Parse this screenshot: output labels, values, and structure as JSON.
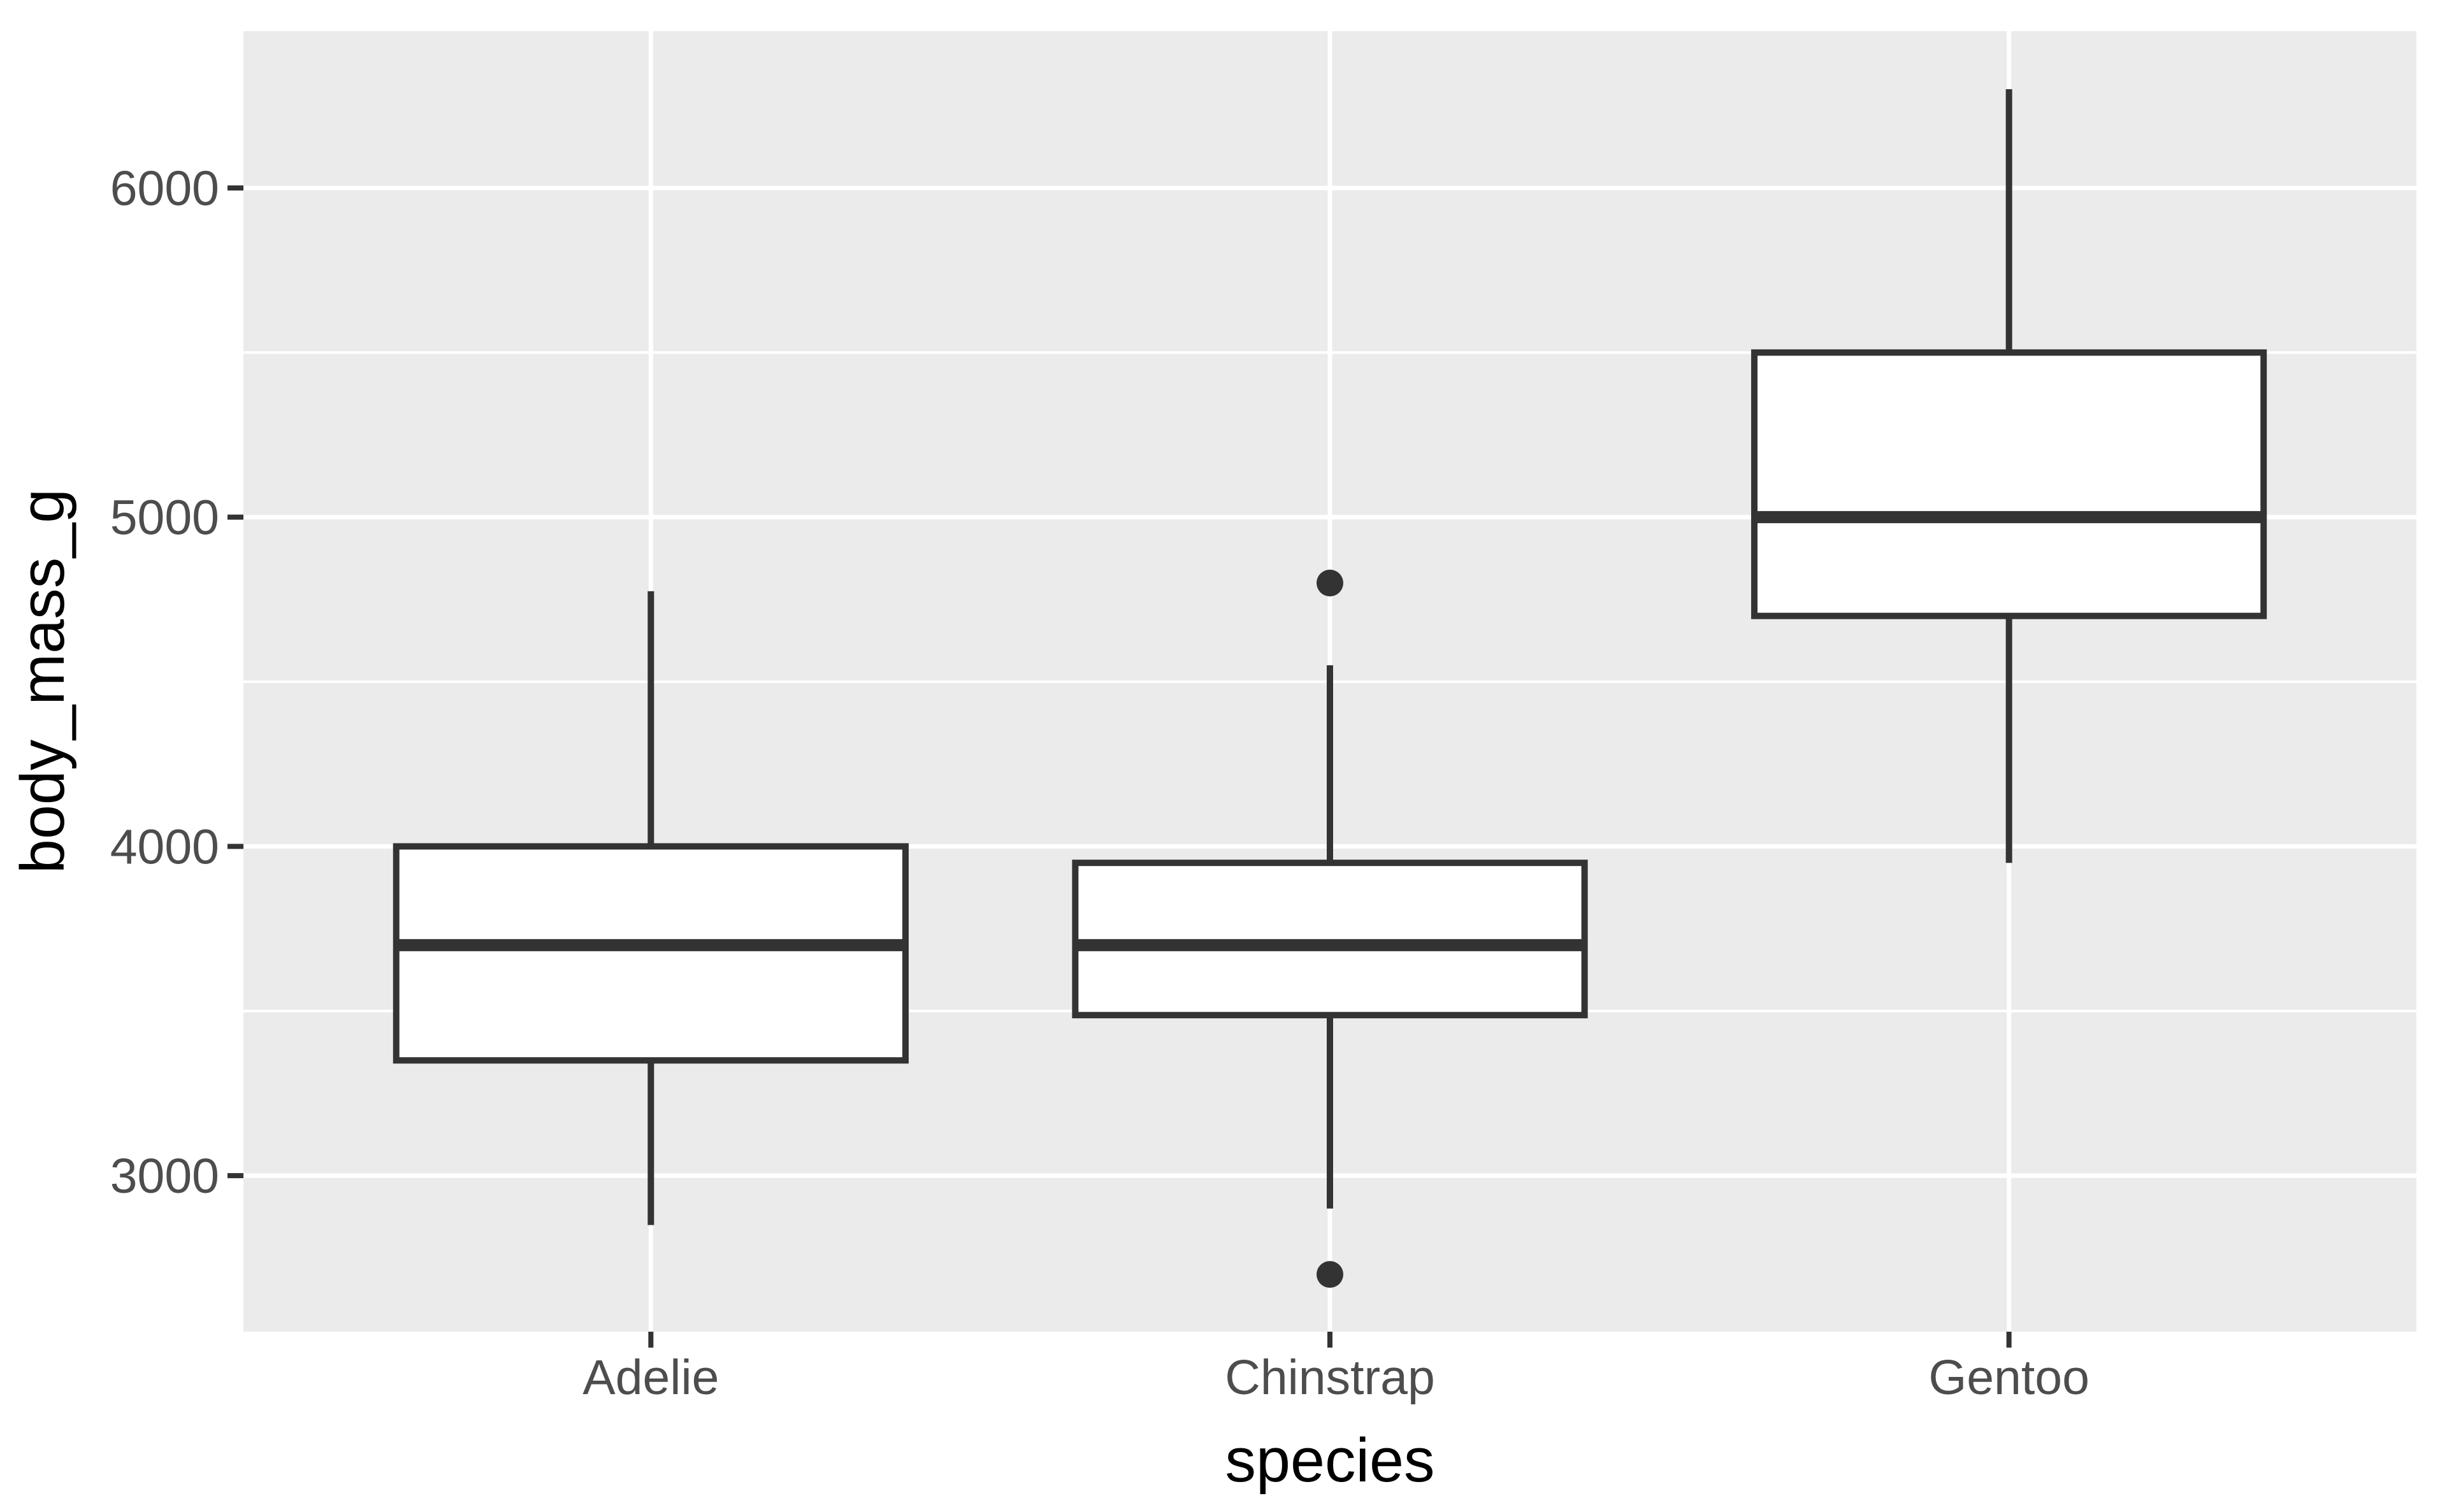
{
  "figure": {
    "kind": "ggplot-style boxplot",
    "background": "#FFFFFF"
  },
  "colors": {
    "panel_bg": "#EBEBEB",
    "gridline": "#FFFFFF",
    "box_stroke": "#333333",
    "box_fill": "#FFFFFF",
    "outlier_fill": "#333333",
    "tick_mark": "#333333",
    "tick_text": "#4D4D4D",
    "title_text": "#000000"
  },
  "chart_data": {
    "type": "boxplot",
    "title": "",
    "xlabel": "species",
    "ylabel": "body_mass_g",
    "categories": [
      "Adelie",
      "Chinstrap",
      "Gentoo"
    ],
    "series": [
      {
        "name": "Adelie",
        "lower_whisker": 2850,
        "q1": 3350,
        "median": 3700,
        "q3": 4000,
        "upper_whisker": 4775,
        "outliers": []
      },
      {
        "name": "Chinstrap",
        "lower_whisker": 2900,
        "q1": 3487.5,
        "median": 3700,
        "q3": 3950,
        "upper_whisker": 4550,
        "outliers": [
          4800,
          2700
        ]
      },
      {
        "name": "Gentoo",
        "lower_whisker": 3950,
        "q1": 4700,
        "median": 5000,
        "q3": 5500,
        "upper_whisker": 6300,
        "outliers": []
      }
    ],
    "y_major_ticks": [
      6000,
      5000,
      4000,
      3000
    ],
    "y_minor_gridlines": [
      5500,
      4500,
      3500
    ],
    "ylim": [
      2526,
      6476
    ],
    "grid": "white major+minor horizontal lines and major vertical lines on grey panel",
    "legend": "none"
  }
}
